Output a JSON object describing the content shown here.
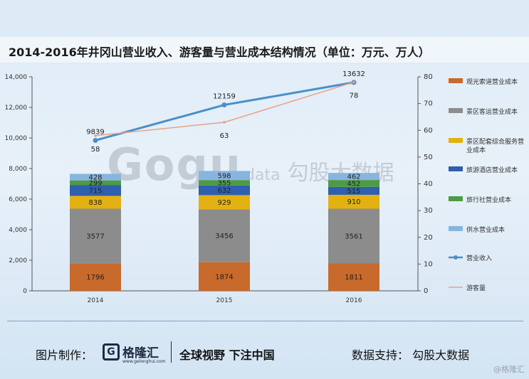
{
  "title": "2014-2016年井冈山营业收入、游客量与营业成本结构情况（单位：万元、万人）",
  "watermark": {
    "logo": "Gogu",
    "suffix": "data",
    "cn": "勾股大数据"
  },
  "footer": {
    "maker_label": "图片制作：",
    "brand_name": "格隆汇",
    "brand_url": "www.gelonghui.com",
    "slogan": "全球视野 下注中国",
    "support": "数据支持： 勾股大数据",
    "corner": "@格隆汇"
  },
  "colors": {
    "cable": "#c86a2b",
    "bus": "#8c8c8c",
    "service": "#e3b212",
    "hotel": "#2f5fae",
    "travel": "#4d9b45",
    "water": "#88b5de",
    "revenue": "#4a90c9",
    "visitors": "#e8a18a"
  },
  "chart_data": {
    "type": "bar",
    "stacked": true,
    "categories": [
      "2014",
      "2015",
      "2016"
    ],
    "y_left": {
      "min": 0,
      "max": 14000,
      "ticks": [
        "0",
        "2,000",
        "4,000",
        "6,000",
        "8,000",
        "10,000",
        "12,000",
        "14,000"
      ]
    },
    "y_right": {
      "min": 0,
      "max": 80,
      "ticks": [
        "0",
        "10",
        "20",
        "30",
        "40",
        "50",
        "60",
        "70",
        "80"
      ]
    },
    "series": [
      {
        "name": "观光索道营业成本",
        "key": "cable",
        "values": [
          1796,
          1874,
          1811
        ]
      },
      {
        "name": "景区客运营业成本",
        "key": "bus",
        "values": [
          3577,
          3456,
          3561
        ]
      },
      {
        "name": "景区配套综合服务营业成本",
        "key": "service",
        "values": [
          838,
          929,
          910
        ]
      },
      {
        "name": "旅游酒店营业成本",
        "key": "hotel",
        "values": [
          715,
          632,
          515
        ]
      },
      {
        "name": "旅行社营业成本",
        "key": "travel",
        "values": [
          299,
          355,
          452
        ]
      },
      {
        "name": "供水营业成本",
        "key": "water",
        "values": [
          428,
          598,
          462
        ]
      }
    ],
    "lines": [
      {
        "name": "营业收入",
        "key": "revenue",
        "axis": "left",
        "values": [
          9839,
          12159,
          13632
        ]
      },
      {
        "name": "游客量",
        "key": "visitors",
        "axis": "right",
        "values": [
          58,
          63,
          78
        ]
      }
    ],
    "legend_position": "right"
  }
}
